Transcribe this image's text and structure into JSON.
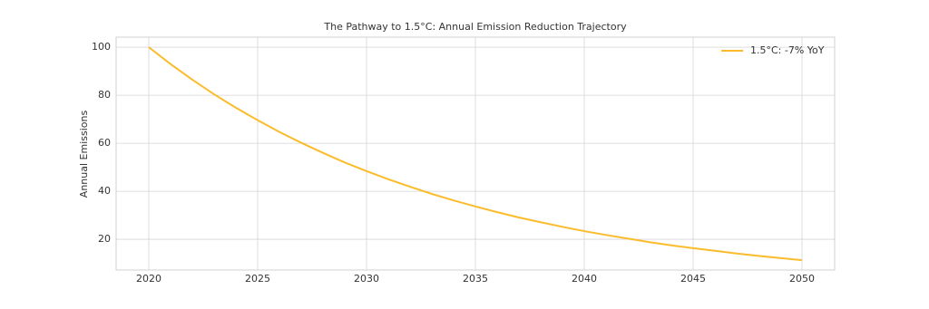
{
  "chart_data": {
    "type": "line",
    "title": "The Pathway to 1.5°C: Annual Emission Reduction Trajectory",
    "ylabel": "Annual Emissions",
    "x": [
      2020,
      2021,
      2022,
      2023,
      2024,
      2025,
      2026,
      2027,
      2028,
      2029,
      2030,
      2031,
      2032,
      2033,
      2034,
      2035,
      2036,
      2037,
      2038,
      2039,
      2040,
      2041,
      2042,
      2043,
      2044,
      2045,
      2046,
      2047,
      2048,
      2049,
      2050
    ],
    "series": [
      {
        "name": "1.5°C: -7% YoY",
        "color": "#fbbc2b",
        "values": [
          100,
          93,
          86.5,
          80.4,
          74.8,
          69.6,
          64.7,
          60.2,
          56,
          52,
          48.4,
          45,
          41.9,
          38.9,
          36.2,
          33.7,
          31.3,
          29.1,
          27.1,
          25.2,
          23.4,
          21.8,
          20.3,
          18.8,
          17.5,
          16.3,
          15.2,
          14.1,
          13.1,
          12.2,
          11.3
        ]
      }
    ],
    "xlim": [
      2018.5,
      2051.5
    ],
    "xticks": [
      2020,
      2025,
      2030,
      2035,
      2040,
      2045,
      2050
    ],
    "ylim": [
      7.2,
      104.2
    ],
    "yticks": [
      20,
      40,
      60,
      80,
      100
    ],
    "grid": true,
    "legend": "upper right"
  }
}
